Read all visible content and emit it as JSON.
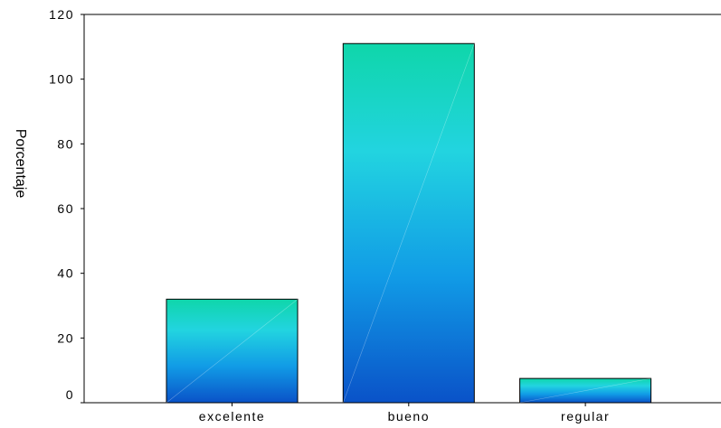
{
  "chart_data": {
    "type": "bar",
    "title": "",
    "xlabel": "",
    "ylabel": "Porcentaje",
    "categories": [
      "excelente",
      "bueno",
      "regular"
    ],
    "values": [
      32,
      111,
      7.5
    ],
    "ylim": [
      0,
      120
    ],
    "yticks": [
      0,
      20,
      40,
      60,
      80,
      100,
      120
    ],
    "grid": false,
    "legend": "none",
    "colors": {
      "bar_top": "#0fd6aa",
      "bar_mid": "#22d4e0",
      "bar_bottom": "#0a52c8",
      "bar_outline": "#000000",
      "axis": "#000000"
    }
  }
}
